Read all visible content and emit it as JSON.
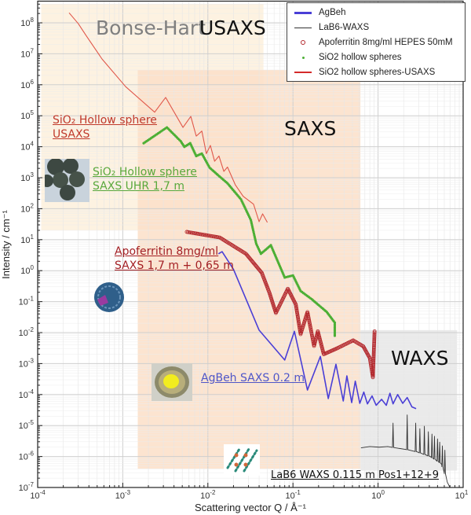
{
  "chart_data": {
    "type": "line",
    "xlabel": "Scattering vector Q / Å⁻¹",
    "ylabel": "Intensity / cm⁻¹",
    "xscale": "log",
    "yscale": "log",
    "xlim": [
      0.0001,
      10
    ],
    "ylim": [
      1e-07,
      500000000.0
    ],
    "grid": true,
    "legend_position": "top-right",
    "x_ticks": [
      {
        "base": "10",
        "exp": "-4"
      },
      {
        "base": "10",
        "exp": "-3"
      },
      {
        "base": "10",
        "exp": "-2"
      },
      {
        "base": "10",
        "exp": "-1"
      },
      {
        "base": "10",
        "exp": "0"
      },
      {
        "base": "10",
        "exp": "1"
      }
    ],
    "y_ticks": [
      {
        "base": "10",
        "exp": "8"
      },
      {
        "base": "10",
        "exp": "7"
      },
      {
        "base": "10",
        "exp": "6"
      },
      {
        "base": "10",
        "exp": "5"
      },
      {
        "base": "10",
        "exp": "4"
      },
      {
        "base": "10",
        "exp": "3"
      },
      {
        "base": "10",
        "exp": "2"
      },
      {
        "base": "10",
        "exp": "1"
      },
      {
        "base": "10",
        "exp": "0"
      },
      {
        "base": "10",
        "exp": "-1"
      },
      {
        "base": "10",
        "exp": "-2"
      },
      {
        "base": "10",
        "exp": "-3"
      },
      {
        "base": "10",
        "exp": "-4"
      },
      {
        "base": "10",
        "exp": "-5"
      },
      {
        "base": "10",
        "exp": "-6"
      },
      {
        "base": "10",
        "exp": "-7"
      }
    ],
    "regions": [
      {
        "label_parts": [
          "Bonse-Hart",
          "USAXS"
        ],
        "q_range": [
          0.00011,
          0.045
        ],
        "i_range": [
          20.0,
          400000000.0
        ],
        "color": "#fdf0dc"
      },
      {
        "label_parts": [
          "SAXS"
        ],
        "q_range": [
          0.0015,
          0.62
        ],
        "i_range": [
          4e-07,
          3000000.0
        ],
        "color": "#fbdfc8"
      },
      {
        "label_parts": [
          "WAXS"
        ],
        "q_range": [
          0.62,
          8.5
        ],
        "i_range": [
          3.5e-07,
          0.012
        ],
        "color": "#e6e6e6"
      }
    ],
    "series": [
      {
        "name": "AgBeh",
        "style": "line",
        "color": "#4a3fd6",
        "points": [
          [
            0.0133,
            3.5
          ],
          [
            0.0147,
            4.1
          ],
          [
            0.02,
            1.1
          ],
          [
            0.04,
            0.012
          ],
          [
            0.08,
            0.0013
          ],
          [
            0.104,
            0.011
          ],
          [
            0.148,
            0.00014
          ],
          [
            0.21,
            0.0017
          ],
          [
            0.26,
            7.4e-05
          ],
          [
            0.32,
            0.00095
          ],
          [
            0.39,
            6.2e-05
          ],
          [
            0.43,
            0.0004
          ],
          [
            0.49,
            5.5e-05
          ],
          [
            0.54,
            0.00027
          ],
          [
            0.61,
            5.2e-05
          ],
          [
            0.68,
            0.00012
          ],
          [
            0.75,
            5e-05
          ],
          [
            0.85,
            9e-05
          ],
          [
            0.95,
            4.5e-05
          ],
          [
            1.1,
            7e-05
          ],
          [
            1.25,
            4.5e-05
          ],
          [
            1.38,
            0.00011
          ],
          [
            1.5,
            5e-05
          ],
          [
            1.7,
            0.0001
          ],
          [
            1.95,
            5.2e-05
          ],
          [
            2.2,
            8e-05
          ],
          [
            2.5,
            4e-05
          ],
          [
            2.8,
            3.5e-05
          ]
        ]
      },
      {
        "name": "LaB6-WAXS",
        "style": "line",
        "color": "#333333",
        "points": [
          [
            0.63,
            1.9e-06
          ],
          [
            0.8,
            2.1e-06
          ],
          [
            1.03,
            2e-06
          ],
          [
            1.3,
            2.1e-06
          ],
          [
            1.6,
            1.9e-06
          ],
          [
            2.1,
            1.7e-06
          ],
          [
            2.9,
            1.4e-06
          ],
          [
            4.2,
            9.6e-07
          ],
          [
            5.6,
            5.5e-07
          ],
          [
            6.5,
            1.5e-07
          ],
          [
            7.0,
            1e-07
          ]
        ],
        "peaks": [
          [
            1.5,
            1.2e-05
          ],
          [
            2.2,
            2.2e-05
          ],
          [
            2.77,
            1.2e-05
          ],
          [
            3.1,
            7.9e-06
          ],
          [
            3.5,
            9.5e-06
          ],
          [
            3.9,
            6.3e-06
          ],
          [
            4.3,
            5.3e-06
          ],
          [
            4.6,
            4.5e-06
          ],
          [
            5.0,
            3.7e-06
          ],
          [
            5.3,
            2.9e-06
          ],
          [
            5.7,
            2.2e-06
          ],
          [
            6.1,
            1.6e-06
          ]
        ]
      },
      {
        "name": "Apoferritin 8mg/ml HEPES 50mM",
        "style": "open-circles",
        "color": "#b3282d",
        "points": [
          [
            0.00565,
            17.8
          ],
          [
            0.0138,
            11.7
          ],
          [
            0.028,
            3.5
          ],
          [
            0.043,
            0.85
          ],
          [
            0.053,
            0.19
          ],
          [
            0.063,
            0.043
          ],
          [
            0.087,
            0.26
          ],
          [
            0.108,
            0.081
          ],
          [
            0.123,
            0.0089
          ],
          [
            0.148,
            0.046
          ],
          [
            0.177,
            0.0037
          ],
          [
            0.196,
            0.011
          ],
          [
            0.23,
            0.002
          ],
          [
            0.33,
            0.0031
          ],
          [
            0.51,
            0.0056
          ],
          [
            0.67,
            0.0036
          ],
          [
            0.8,
            0.0015
          ],
          [
            0.87,
            0.00036
          ],
          [
            0.91,
            0.011
          ]
        ]
      },
      {
        "name": "SiO2 hollow spheres",
        "style": "dots",
        "color": "#4caf35",
        "points": [
          [
            0.00176,
            13000
          ],
          [
            0.0033,
            42000
          ],
          [
            0.0048,
            15000
          ],
          [
            0.0053,
            9900
          ],
          [
            0.0062,
            13000
          ],
          [
            0.0073,
            5000
          ],
          [
            0.0085,
            6000
          ],
          [
            0.0105,
            2100
          ],
          [
            0.0132,
            1200
          ],
          [
            0.017,
            660
          ],
          [
            0.0245,
            200
          ],
          [
            0.032,
            43
          ],
          [
            0.037,
            7.4
          ],
          [
            0.042,
            3.5
          ],
          [
            0.055,
            6.6
          ],
          [
            0.08,
            0.6
          ],
          [
            0.1,
            0.7
          ],
          [
            0.123,
            0.22
          ],
          [
            0.166,
            0.12
          ],
          [
            0.25,
            0.046
          ],
          [
            0.31,
            0.021
          ],
          [
            0.31,
            0.0079
          ]
        ]
      },
      {
        "name": "SiO2 hollow spheres-USAXS",
        "style": "line",
        "color": "#e0574a",
        "points": [
          [
            0.000234,
            210000000.0
          ],
          [
            0.0003,
            94000000.0
          ],
          [
            0.00037,
            39000000.0
          ],
          [
            0.00057,
            6800000.0
          ],
          [
            0.00108,
            870000.0
          ],
          [
            0.00237,
            130000.0
          ],
          [
            0.00319,
            390000.0
          ],
          [
            0.0051,
            42000.0
          ],
          [
            0.0063,
            95000.0
          ],
          [
            0.0073,
            22000.0
          ],
          [
            0.0085,
            32000.0
          ],
          [
            0.0096,
            6000
          ],
          [
            0.0107,
            11000
          ],
          [
            0.012,
            3400
          ],
          [
            0.0135,
            5000
          ],
          [
            0.0154,
            1600
          ],
          [
            0.017,
            2200
          ],
          [
            0.021,
            590
          ],
          [
            0.026,
            250
          ],
          [
            0.0344,
            140
          ],
          [
            0.04,
            38
          ],
          [
            0.044,
            68
          ],
          [
            0.05,
            36
          ]
        ]
      }
    ]
  },
  "annotations": {
    "sio2_usaxs": [
      "SiO₂ Hollow sphere",
      "USAXS"
    ],
    "sio2_saxs": [
      "SiO₂ Hollow sphere",
      "SAXS UHR 1,7 m"
    ],
    "apoferritin": [
      "Apoferritin 8mg/ml",
      "SAXS 1,7 m + 0,65 m"
    ],
    "agbeh": "AgBeh SAXS 0.2 m",
    "lab6": "LaB6 WAXS 0.115 m Pos1+12+9"
  },
  "colors": {
    "usaxs_text": "#c0392b",
    "saxs_sio2_text": "#5aa83c",
    "apo_text": "#a31f24",
    "agbeh_text": "#4f56c8",
    "bonse_gray": "#7f7f7f"
  }
}
